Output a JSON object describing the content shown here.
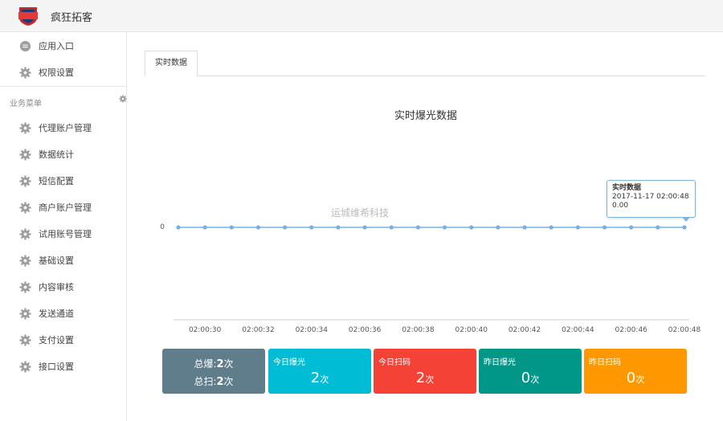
{
  "app": {
    "brand": "疯狂拓客",
    "logo_icon": "tuoke-logo-shield",
    "logo_text": "拓客"
  },
  "sidebar": {
    "top_items": [
      {
        "label": "应用入口",
        "icon": "chat-bubble-icon"
      },
      {
        "label": "权限设置",
        "icon": "gear-icon"
      }
    ],
    "section_title": "业务菜单",
    "items": [
      {
        "label": "代理账户管理",
        "icon": "gear-icon"
      },
      {
        "label": "数据统计",
        "icon": "gear-icon"
      },
      {
        "label": "短信配置",
        "icon": "gear-icon"
      },
      {
        "label": "商户账户管理",
        "icon": "gear-icon"
      },
      {
        "label": "试用账号管理",
        "icon": "gear-icon"
      },
      {
        "label": "基础设置",
        "icon": "gear-icon"
      },
      {
        "label": "内容审核",
        "icon": "gear-icon"
      },
      {
        "label": "发送通道",
        "icon": "gear-icon"
      },
      {
        "label": "支付设置",
        "icon": "gear-icon"
      },
      {
        "label": "接口设置",
        "icon": "gear-icon"
      }
    ]
  },
  "tabs": [
    {
      "label": "实时数据",
      "active": true
    }
  ],
  "watermark": "运城维希科技",
  "tooltip": {
    "title": "实时数据",
    "time": "2017-11-17 02:00:48",
    "value": "0.00"
  },
  "chart_data": {
    "type": "line",
    "title": "实时爆光数据",
    "x": [
      "02:00:29",
      "02:00:30",
      "02:00:31",
      "02:00:32",
      "02:00:33",
      "02:00:34",
      "02:00:35",
      "02:00:36",
      "02:00:37",
      "02:00:38",
      "02:00:39",
      "02:00:40",
      "02:00:41",
      "02:00:42",
      "02:00:43",
      "02:00:44",
      "02:00:45",
      "02:00:46",
      "02:00:47",
      "02:00:48"
    ],
    "xticks": [
      "02:00:30",
      "02:00:32",
      "02:00:34",
      "02:00:36",
      "02:00:38",
      "02:00:40",
      "02:00:42",
      "02:00:44",
      "02:00:46",
      "02:00:48"
    ],
    "series": [
      {
        "values": [
          0,
          0,
          0,
          0,
          0,
          0,
          0,
          0,
          0,
          0,
          0,
          0,
          0,
          0,
          0,
          0,
          0,
          0,
          0,
          0
        ]
      }
    ],
    "yticks": [
      "0"
    ],
    "line_color": "#7ab0dd",
    "grid": false
  },
  "stats": {
    "total_exposure_label": "总爆:",
    "total_exposure_value": "2",
    "total_exposure_unit": "次",
    "total_scan_label": "总扫:",
    "total_scan_value": "2",
    "total_scan_unit": "次",
    "cards": [
      {
        "label": "今日爆光",
        "value": "2",
        "unit": "次",
        "color": "#00bcd4"
      },
      {
        "label": "今日扫码",
        "value": "2",
        "unit": "次",
        "color": "#f44336"
      },
      {
        "label": "昨日爆光",
        "value": "0",
        "unit": "次",
        "color": "#009688"
      },
      {
        "label": "昨日扫码",
        "value": "0",
        "unit": "次",
        "color": "#ff9800"
      }
    ],
    "total_color": "#607d8b"
  }
}
